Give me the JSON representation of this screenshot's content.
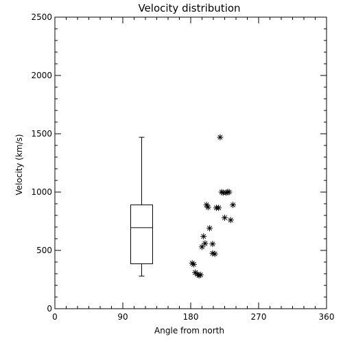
{
  "chart_data": {
    "type": "scatter",
    "title": "Velocity distribution",
    "xlabel": "Angle from north",
    "ylabel": "Velocity (km/s)",
    "xlim": [
      0,
      360
    ],
    "ylim": [
      0,
      2500
    ],
    "xticks": [
      0,
      90,
      180,
      270,
      360
    ],
    "yticks": [
      0,
      500,
      1000,
      1500,
      2000,
      2500
    ],
    "grid": false,
    "marker": "asterisk",
    "boxplot": {
      "x": 115,
      "min": 280,
      "q1": 385,
      "median": 695,
      "q3": 890,
      "max": 1470
    },
    "points": [
      {
        "x": 182,
        "y": 390
      },
      {
        "x": 184,
        "y": 380
      },
      {
        "x": 186,
        "y": 310
      },
      {
        "x": 189,
        "y": 295
      },
      {
        "x": 191,
        "y": 285
      },
      {
        "x": 193,
        "y": 290
      },
      {
        "x": 195,
        "y": 530
      },
      {
        "x": 197,
        "y": 620
      },
      {
        "x": 199,
        "y": 560
      },
      {
        "x": 201,
        "y": 890
      },
      {
        "x": 203,
        "y": 870
      },
      {
        "x": 205,
        "y": 690
      },
      {
        "x": 209,
        "y": 555
      },
      {
        "x": 209,
        "y": 475
      },
      {
        "x": 212,
        "y": 470
      },
      {
        "x": 214,
        "y": 865
      },
      {
        "x": 217,
        "y": 865
      },
      {
        "x": 219,
        "y": 1470
      },
      {
        "x": 221,
        "y": 1000
      },
      {
        "x": 223,
        "y": 995
      },
      {
        "x": 225,
        "y": 780
      },
      {
        "x": 227,
        "y": 995
      },
      {
        "x": 229,
        "y": 1000
      },
      {
        "x": 231,
        "y": 1000
      },
      {
        "x": 233,
        "y": 760
      },
      {
        "x": 236,
        "y": 890
      }
    ]
  }
}
